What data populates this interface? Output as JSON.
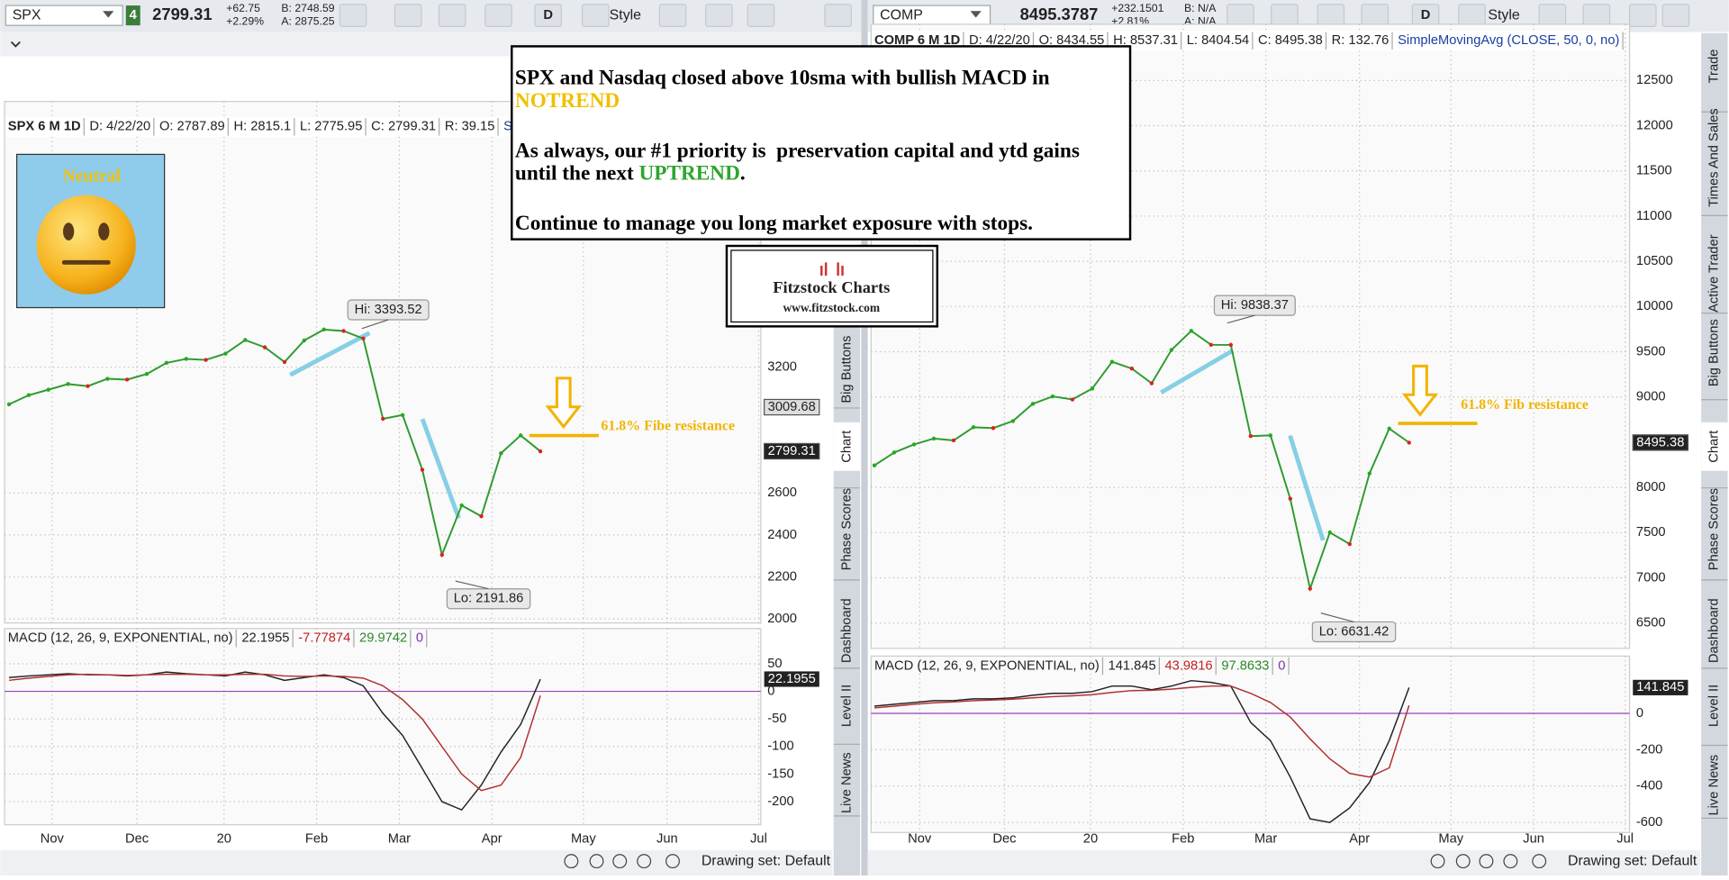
{
  "left": {
    "toolbar": {
      "symbol": "SPX",
      "badge": "4",
      "last": "2799.31",
      "change": "+62.75",
      "change_pct": "+2.29%",
      "bid": "B: 2748.59",
      "ask": "A: 2875.25",
      "period": "D",
      "style": "Style"
    },
    "header": [
      "SPX 6 M 1D",
      "D: 4/22/20",
      "O: 2787.89",
      "H: 2815.1",
      "L: 2775.95",
      "C: 2799.31",
      "R: 39.15",
      "Si"
    ],
    "ylim": [
      1980,
      4426
    ],
    "price_ticks": [
      2000,
      2200,
      2400,
      2600,
      3200
    ],
    "price_labels": [
      3009.68,
      2799.31
    ],
    "closes": [
      3023,
      3067,
      3093,
      3120,
      3110,
      3145,
      3141,
      3168,
      3221,
      3240,
      3235,
      3265,
      3330,
      3295,
      3225,
      3328,
      3380,
      3373,
      3337,
      2954,
      2972,
      2711,
      2305,
      2541,
      2489,
      2790,
      2875,
      2799
    ],
    "hi": "Hi: 3393.52",
    "lo": "Lo: 2191.86",
    "fib": "61.8% Fibe resistance",
    "macd_header": [
      "MACD (12, 26, 9, EXPONENTIAL, no)",
      22.1955,
      -7.77874,
      29.9742,
      0
    ],
    "macd_ylim": [
      -242,
      114
    ],
    "macd_ticks": [
      50,
      0,
      -50,
      -100,
      -150,
      -200
    ],
    "macd_label": 22.1955,
    "macd": [
      25,
      28,
      30,
      32,
      30,
      30,
      28,
      30,
      35,
      32,
      30,
      28,
      35,
      30,
      20,
      25,
      30,
      25,
      10,
      -40,
      -80,
      -140,
      -200,
      -215,
      -170,
      -110,
      -60,
      22
    ],
    "signal": [
      20,
      24,
      27,
      30,
      31,
      30,
      29,
      30,
      31,
      31,
      30,
      30,
      31,
      31,
      28,
      27,
      28,
      27,
      24,
      10,
      -15,
      -50,
      -100,
      -150,
      -180,
      -170,
      -120,
      -7.78
    ],
    "months": [
      "Nov",
      "Dec",
      "20",
      "Feb",
      "Mar",
      "Apr",
      "May",
      "Jun",
      "Jul"
    ],
    "tabs": [
      "Big Buttons",
      "Chart",
      "Phase Scores",
      "Dashboard",
      "Level II",
      "Live News"
    ],
    "drawing_set": "Drawing set: Default"
  },
  "right": {
    "toolbar": {
      "symbol": "COMP",
      "last": "8495.3787",
      "change": "+232.1501",
      "change_pct": "+2.81%",
      "bid": "B: N/A",
      "ask": "A: N/A",
      "period": "D",
      "style": "Style"
    },
    "header": [
      "COMP 6 M 1D",
      "D: 4/22/20",
      "O: 8434.55",
      "H: 8537.31",
      "L: 8404.54",
      "C: 8495.38",
      "R: 132.76",
      "SimpleMovingAvg (CLOSE, 50, 0, no)"
    ],
    "ylim": [
      6220,
      13024
    ],
    "price_ticks": [
      6500,
      7000,
      7500,
      8000,
      9000,
      9500,
      10000,
      10500,
      11000,
      11500,
      12000,
      12500
    ],
    "price_labels": [
      8495.38
    ],
    "closes": [
      8243,
      8386,
      8475,
      8540,
      8520,
      8665,
      8656,
      8734,
      8924,
      9006,
      8972,
      9093,
      9389,
      9314,
      9151,
      9520,
      9731,
      9577,
      9576,
      8567,
      8575,
      7875,
      6880,
      7502,
      7373,
      8154,
      8650,
      8495
    ],
    "hi": "Hi: 9838.37",
    "lo": "Lo: 6631.42",
    "fib": "61.8% Fib resistance",
    "macd_header": [
      "MACD (12, 26, 9, EXPONENTIAL, no)",
      141.845,
      43.9816,
      97.8633,
      0
    ],
    "macd_ylim": [
      -655,
      315
    ],
    "macd_ticks": [
      0,
      -200,
      -400,
      -600
    ],
    "macd_label": 141.845,
    "macd": [
      40,
      50,
      60,
      70,
      70,
      80,
      80,
      85,
      100,
      110,
      110,
      120,
      150,
      150,
      130,
      150,
      180,
      170,
      150,
      -50,
      -150,
      -350,
      -580,
      -600,
      -520,
      -380,
      -150,
      141.845
    ],
    "signal": [
      30,
      40,
      50,
      58,
      63,
      70,
      74,
      78,
      85,
      92,
      97,
      103,
      115,
      125,
      127,
      133,
      143,
      150,
      150,
      110,
      60,
      -20,
      -140,
      -250,
      -330,
      -350,
      -300,
      43.98
    ],
    "months": [
      "Nov",
      "Dec",
      "20",
      "Feb",
      "Mar",
      "Apr",
      "May",
      "Jun",
      "Jul"
    ],
    "tabs": [
      "Trade",
      "Times And Sales",
      "Active Trader",
      "Big Buttons",
      "Chart",
      "Phase Scores",
      "Dashboard",
      "Level II",
      "Live News"
    ],
    "drawing_set": "Drawing set: Default"
  },
  "sentiment": "Neutral",
  "note": {
    "line1": "SPX and Nasdaq closed above 10sma with bullish MACD in",
    "notrend": "NOTREND",
    "line2": "As always, our #1 priority is  preservation capital and ytd gains",
    "line3": "until the next",
    "uptrend": "UPTREND",
    "end": ".",
    "line4": "Continue to manage you long market exposure with stops."
  },
  "logo": {
    "title": "Fitzstock Charts",
    "url": "www.fitzstock.com"
  }
}
